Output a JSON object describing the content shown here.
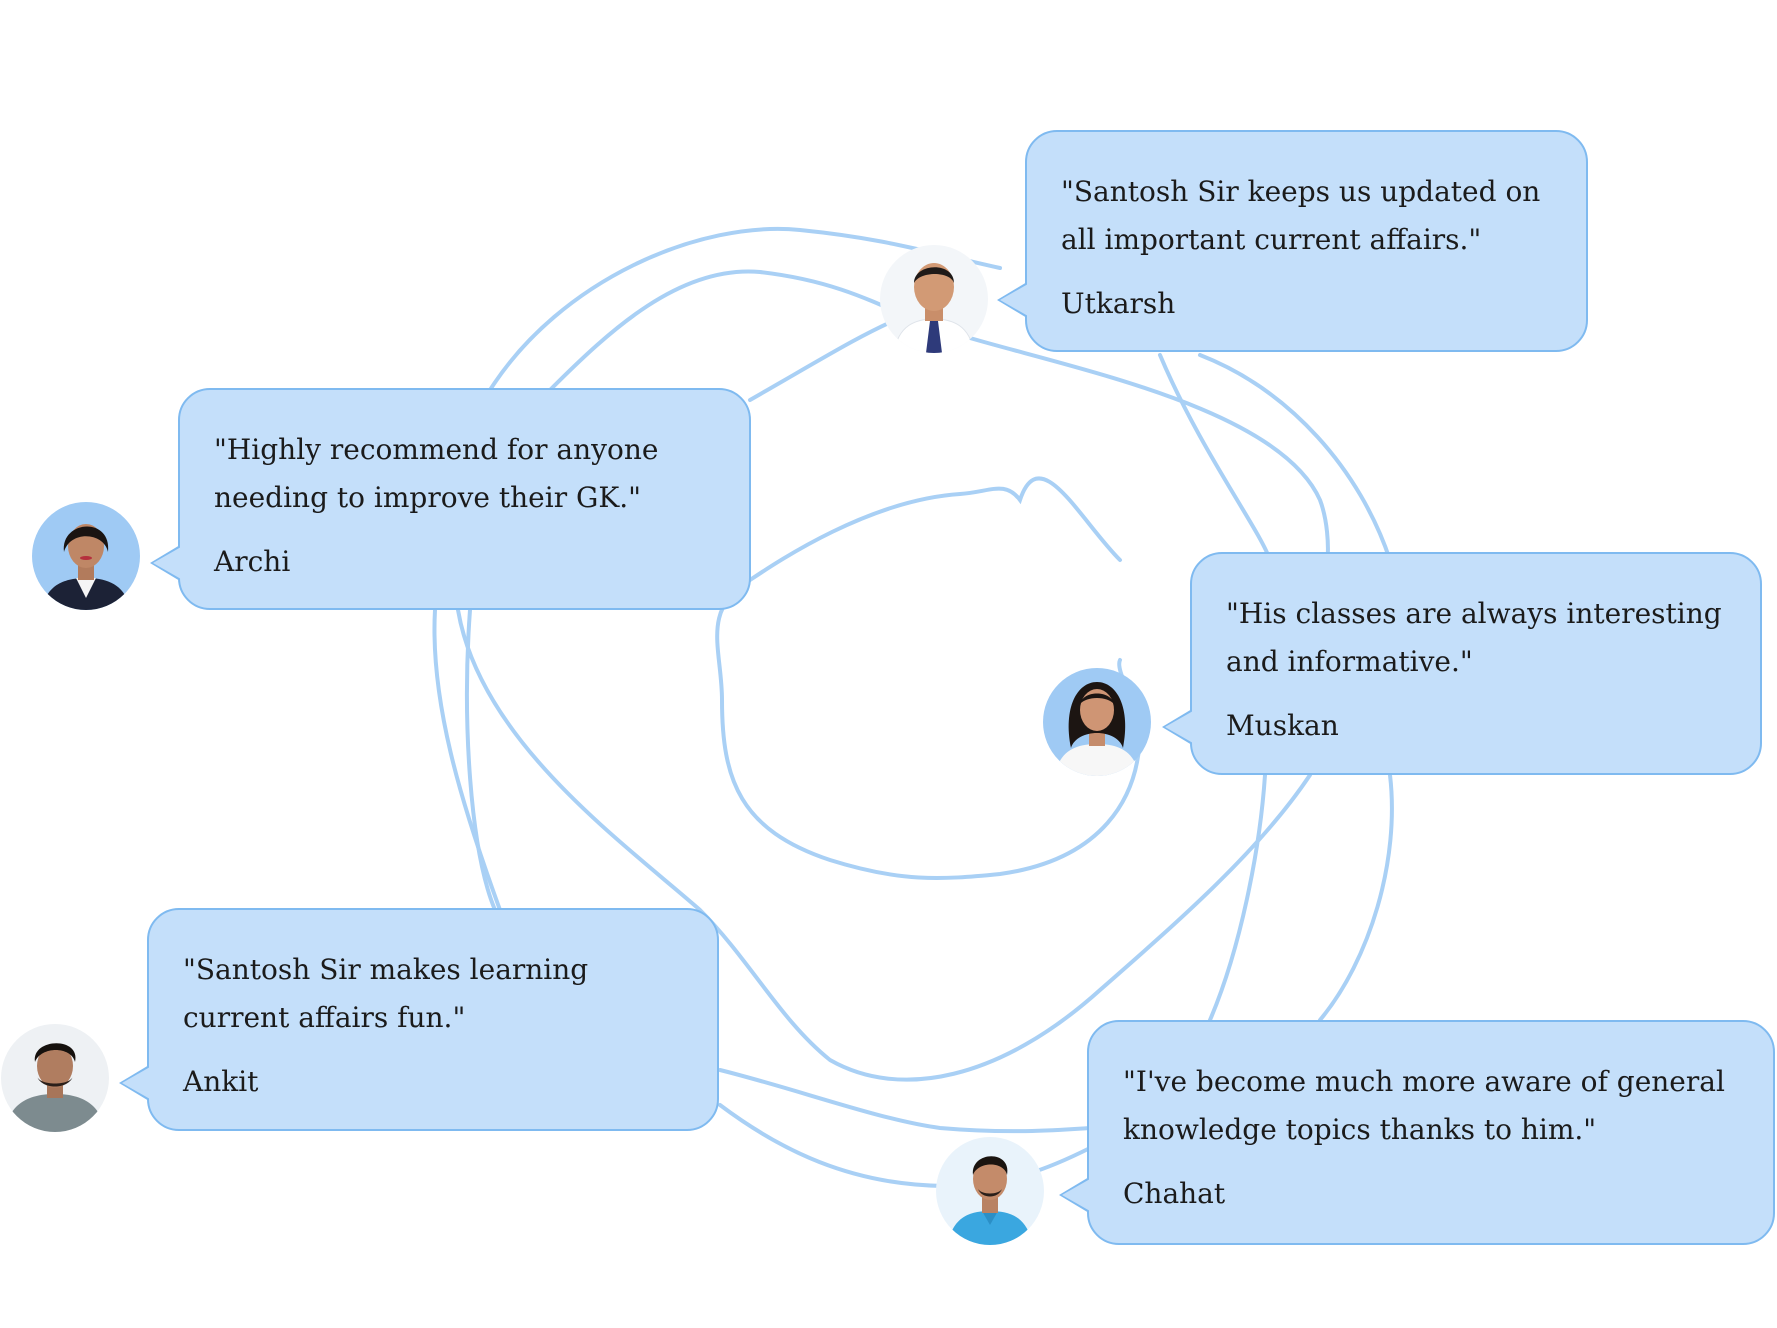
{
  "theme": {
    "bubble_fill": "#c4dffa",
    "bubble_border": "#7fbaf0",
    "swirl_color": "#a9d0f5",
    "text_color": "#1b1b1b"
  },
  "testimonials": [
    {
      "quote": "\"Santosh Sir keeps us updated on all important current affairs.\"",
      "author": "Utkarsh",
      "avatar_icon": "man-with-tie-avatar-icon"
    },
    {
      "quote": "\"Highly recommend for anyone needing to improve their GK.\"",
      "author": "Archi",
      "avatar_icon": "woman-avatar-icon"
    },
    {
      "quote": "\"His classes are always interesting and informative.\"",
      "author": "Muskan",
      "avatar_icon": "woman-white-shirt-avatar-icon"
    },
    {
      "quote": "\"Santosh Sir makes learning current affairs fun.\"",
      "author": "Ankit",
      "avatar_icon": "man-hoodie-avatar-icon"
    },
    {
      "quote": "\"I've become much more aware of general knowledge topics thanks to him.\"",
      "author": "Chahat",
      "avatar_icon": "man-blue-shirt-avatar-icon"
    }
  ]
}
